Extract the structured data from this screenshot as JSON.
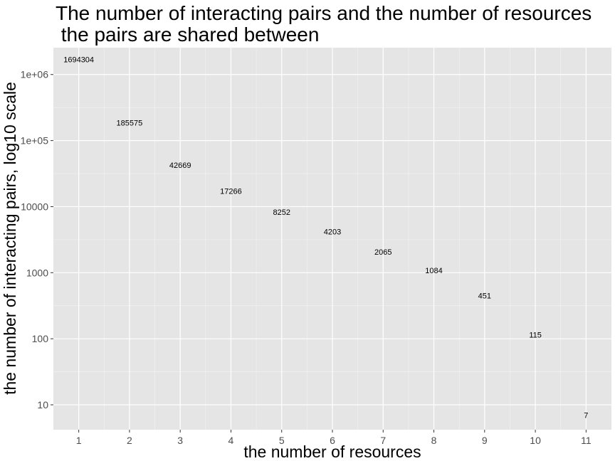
{
  "chart_data": {
    "type": "scatter",
    "title_lines": [
      "The number of interacting pairs and the number of resources",
      " the pairs are shared between"
    ],
    "xlabel": "the number of resources",
    "ylabel": "the number of interacting pairs, log10 scale",
    "x": [
      1,
      2,
      3,
      4,
      5,
      6,
      7,
      8,
      9,
      10,
      11
    ],
    "values": [
      1694304,
      185575,
      42669,
      17266,
      8252,
      4203,
      2065,
      1084,
      451,
      115,
      7
    ],
    "point_labels": [
      "1694304",
      "185575",
      "42669",
      "17266",
      "8252",
      "4203",
      "2065",
      "1084",
      "451",
      "115",
      "7"
    ],
    "x_ticks": [
      "1",
      "2",
      "3",
      "4",
      "5",
      "6",
      "7",
      "8",
      "9",
      "10",
      "11"
    ],
    "y_ticks": [
      {
        "value": 10,
        "label": "10"
      },
      {
        "value": 100,
        "label": "100"
      },
      {
        "value": 1000,
        "label": "1000"
      },
      {
        "value": 10000,
        "label": "10000"
      },
      {
        "value": 100000,
        "label": "1e+05"
      },
      {
        "value": 1000000,
        "label": "1e+06"
      }
    ],
    "y_scale": "log10",
    "xlim": [
      0.5,
      11.5
    ],
    "ylim": [
      4.2,
      2550000
    ],
    "grid": true,
    "legend": "none",
    "panel_background": "#e5e5e5",
    "grid_color": "#ffffff"
  }
}
